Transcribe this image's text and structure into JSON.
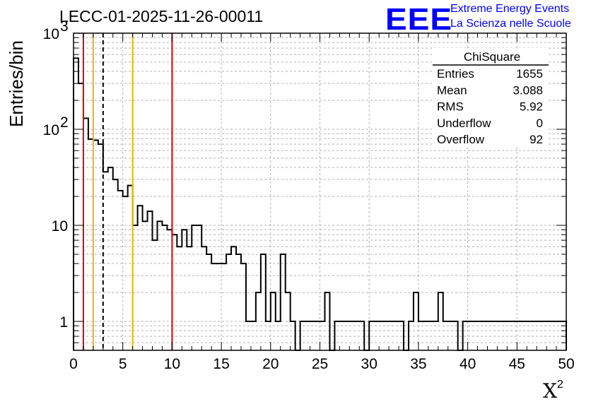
{
  "title": "LECC-01-2025-11-26-00011",
  "logo": {
    "mark": "EEE",
    "line1": "Extreme Energy Events",
    "line2": "La Scienza nelle Scuole",
    "color": "#0000ff"
  },
  "stats": {
    "name": "ChiSquare",
    "rows": [
      {
        "label": "Entries",
        "value": "1655"
      },
      {
        "label": "Mean",
        "value": "3.088"
      },
      {
        "label": "RMS",
        "value": "5.92"
      },
      {
        "label": "Underflow",
        "value": "0"
      },
      {
        "label": "Overflow",
        "value": "92"
      }
    ]
  },
  "chart_data": {
    "type": "bar",
    "style": "step-histogram",
    "xlabel_symbol": "X",
    "xlabel_power": "2",
    "ylabel": "Entries/bin",
    "xlim": [
      0,
      50
    ],
    "ylim": [
      0.5,
      1000
    ],
    "yscale": "log",
    "grid": true,
    "bin_width": 0.5,
    "x_ticks": [
      "0",
      "5",
      "10",
      "15",
      "20",
      "25",
      "30",
      "35",
      "40",
      "45",
      "50"
    ],
    "y_ticks": [
      {
        "value": 1,
        "label": "1"
      },
      {
        "value": 10,
        "label": "10"
      },
      {
        "value": 100,
        "label": "10",
        "exp": "2"
      },
      {
        "value": 1000,
        "label": "10",
        "exp": "3"
      }
    ],
    "values": [
      550,
      300,
      130,
      79,
      77,
      70,
      36,
      40,
      30,
      23,
      20,
      26,
      10,
      16,
      11,
      14,
      7,
      11,
      10,
      9,
      8,
      6,
      9,
      6,
      10,
      10,
      6,
      5,
      4,
      4,
      4,
      5,
      6,
      5,
      4,
      1,
      1,
      2,
      5,
      1,
      2,
      1,
      5,
      2,
      1,
      0,
      1,
      1,
      1,
      1,
      1,
      2,
      0,
      1,
      1,
      1,
      1,
      1,
      1,
      0,
      1,
      1,
      1,
      1,
      1,
      1,
      1,
      0,
      1,
      2,
      1,
      1,
      1,
      1,
      2,
      1,
      1,
      1,
      0,
      1,
      1,
      1,
      1,
      1,
      1,
      1,
      1,
      1,
      1,
      1,
      1,
      1,
      1,
      1,
      1,
      1,
      1,
      1,
      1,
      1
    ],
    "vertical_lines": [
      {
        "x": 1,
        "color": "#e00000",
        "style": "solid"
      },
      {
        "x": 2,
        "color": "#f0b400",
        "style": "solid"
      },
      {
        "x": 3,
        "color": "#000000",
        "style": "dashed"
      },
      {
        "x": 6,
        "color": "#f0b400",
        "style": "solid"
      },
      {
        "x": 10,
        "color": "#e00000",
        "style": "solid"
      }
    ]
  }
}
